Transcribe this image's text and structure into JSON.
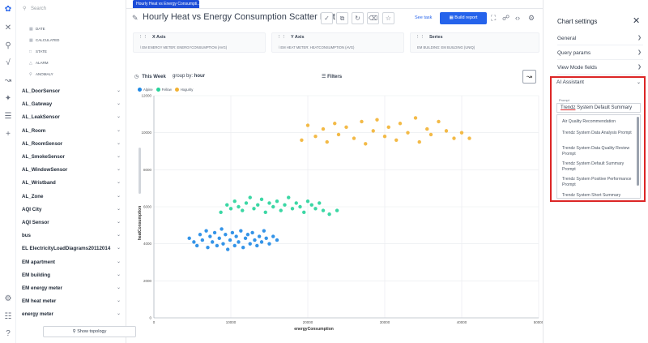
{
  "tab_label": "Hourly Heat vs Energy Consumpti...",
  "title": "Hourly Heat vs Energy Consumption Scatter Plot",
  "see_task": "See task",
  "build_report": "Build report",
  "search_placeholder": "Search",
  "tree_sub": [
    "DATE",
    "CALCULATED",
    "STATE",
    "ALARM",
    "ANOMALY"
  ],
  "tree_items": [
    "AL_DoorSensor",
    "AL_Gateway",
    "AL_LeakSensor",
    "AL_Room",
    "AL_RoomSensor",
    "AL_SmokeSensor",
    "AL_WindowSensor",
    "AL_Wristband",
    "AL_Zone",
    "AQI City",
    "AQI Sensor",
    "bus",
    "EL ElectricityLoadDiagrams20112014",
    "EM apartment",
    "EM building",
    "EM energy meter",
    "EM heat meter",
    "energy meter"
  ],
  "show_topology": "Show topology",
  "axes": {
    "x": {
      "title": "X Axis",
      "value": "\\ EM ENERGY METER: ENERGYCONSUMPTION (AVG)"
    },
    "y": {
      "title": "Y Axis",
      "value": "\\ EM HEAT METER: HEATCONSUMPTION (AVG)"
    },
    "series": {
      "title": "Series",
      "value": "EM BUILDING: EM BUILDING (UNIQ)"
    }
  },
  "period": "This Week",
  "group_by_label": "group by:",
  "group_by": "hour",
  "filters": "Filters",
  "settings": {
    "title": "Chart settings",
    "items": [
      "General",
      "Query params",
      "View Mode fields"
    ],
    "ai_title": "AI Assistant",
    "prompt_label": "Prompt",
    "prompt_selected_a": "Trendz",
    "prompt_selected_b": " System Default Summary",
    "prompt_options": [
      "Air Quality Recommendation",
      "Trendz System Data Analysis Prompt",
      "Trendz System Data Quality Review Prompt",
      "Trendz System Default Summary Prompt",
      "Trendz System Positive Performance Prompt",
      "Trendz System Short Summary"
    ]
  },
  "chart_data": {
    "type": "scatter",
    "xlabel": "energyConsumption",
    "ylabel": "heatConsumption",
    "xlim": [
      0,
      50000
    ],
    "ylim": [
      0,
      12000
    ],
    "xticks": [
      0,
      10000,
      20000,
      30000,
      40000,
      50000
    ],
    "yticks": [
      0,
      2000,
      4000,
      6000,
      8000,
      10000,
      12000
    ],
    "colors": {
      "Alpine": "#1e88e5",
      "Fellow": "#26d39a",
      "Hogurity": "#f2b233"
    },
    "series": [
      {
        "name": "Alpine",
        "x_range": [
          4500,
          16000
        ],
        "y_range": [
          3600,
          4900
        ],
        "points": [
          [
            4600,
            4300
          ],
          [
            5200,
            4100
          ],
          [
            5600,
            3900
          ],
          [
            6000,
            4500
          ],
          [
            6300,
            4200
          ],
          [
            6800,
            4700
          ],
          [
            7000,
            3800
          ],
          [
            7300,
            4400
          ],
          [
            7600,
            4100
          ],
          [
            7900,
            4600
          ],
          [
            8200,
            3900
          ],
          [
            8500,
            4300
          ],
          [
            8800,
            4800
          ],
          [
            9000,
            4000
          ],
          [
            9300,
            4500
          ],
          [
            9600,
            3700
          ],
          [
            9900,
            4200
          ],
          [
            10200,
            4600
          ],
          [
            10500,
            3900
          ],
          [
            10700,
            4400
          ],
          [
            11000,
            4100
          ],
          [
            11300,
            4700
          ],
          [
            11600,
            3800
          ],
          [
            11900,
            4300
          ],
          [
            12200,
            4500
          ],
          [
            12500,
            4000
          ],
          [
            12800,
            4600
          ],
          [
            13100,
            4200
          ],
          [
            13400,
            3900
          ],
          [
            13700,
            4400
          ],
          [
            14000,
            4100
          ],
          [
            14300,
            4700
          ],
          [
            14600,
            4300
          ],
          [
            15000,
            4000
          ],
          [
            15500,
            4400
          ],
          [
            16000,
            4200
          ]
        ]
      },
      {
        "name": "Fellow",
        "x_range": [
          8500,
          24000
        ],
        "y_range": [
          5400,
          6700
        ],
        "points": [
          [
            8700,
            5700
          ],
          [
            9500,
            6100
          ],
          [
            10000,
            5900
          ],
          [
            10500,
            6300
          ],
          [
            11000,
            6000
          ],
          [
            11500,
            5800
          ],
          [
            12000,
            6200
          ],
          [
            12500,
            6500
          ],
          [
            13000,
            5900
          ],
          [
            13500,
            6100
          ],
          [
            14000,
            6400
          ],
          [
            14500,
            5700
          ],
          [
            15000,
            6200
          ],
          [
            15500,
            6000
          ],
          [
            16000,
            6300
          ],
          [
            16500,
            5800
          ],
          [
            17000,
            6100
          ],
          [
            17500,
            6500
          ],
          [
            18000,
            5900
          ],
          [
            18500,
            6200
          ],
          [
            19000,
            6000
          ],
          [
            19500,
            5700
          ],
          [
            20000,
            6300
          ],
          [
            20500,
            6100
          ],
          [
            21000,
            5900
          ],
          [
            21500,
            6200
          ],
          [
            22000,
            5800
          ],
          [
            22800,
            5600
          ],
          [
            23800,
            5800
          ]
        ]
      },
      {
        "name": "Hogurity",
        "x_range": [
          19000,
          41000
        ],
        "y_range": [
          9000,
          11200
        ],
        "points": [
          [
            19200,
            9600
          ],
          [
            20000,
            10400
          ],
          [
            21000,
            9800
          ],
          [
            22000,
            10200
          ],
          [
            22500,
            9500
          ],
          [
            23500,
            10500
          ],
          [
            24000,
            9900
          ],
          [
            25000,
            10300
          ],
          [
            26000,
            9700
          ],
          [
            27000,
            10600
          ],
          [
            27500,
            9400
          ],
          [
            28500,
            10100
          ],
          [
            29000,
            10700
          ],
          [
            30000,
            9800
          ],
          [
            30500,
            10300
          ],
          [
            31500,
            9600
          ],
          [
            32000,
            10500
          ],
          [
            33000,
            10000
          ],
          [
            34000,
            10800
          ],
          [
            34500,
            9500
          ],
          [
            35500,
            10200
          ],
          [
            36000,
            9900
          ],
          [
            37000,
            10600
          ],
          [
            38000,
            10100
          ],
          [
            39000,
            9700
          ],
          [
            40000,
            10000
          ],
          [
            41000,
            9700
          ]
        ]
      }
    ]
  }
}
